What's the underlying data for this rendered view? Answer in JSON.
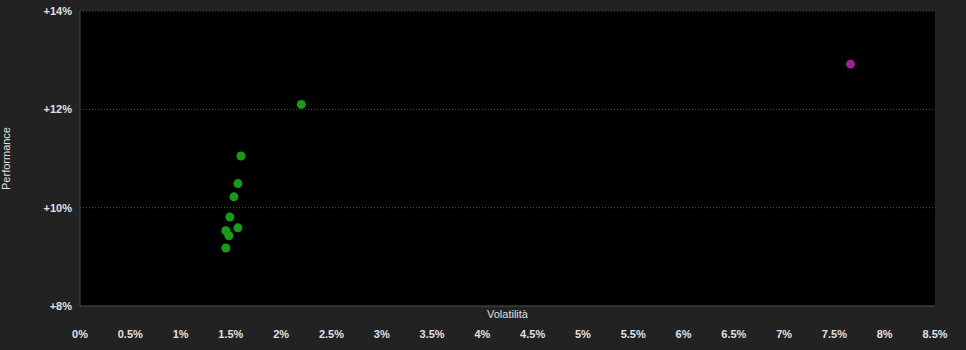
{
  "chart_data": {
    "type": "scatter",
    "x_label": "Volatilità",
    "y_label": "Performance",
    "xlim": [
      0,
      8.5
    ],
    "ylim": [
      8,
      14
    ],
    "xticks": [
      {
        "value": 0,
        "label": "0%"
      },
      {
        "value": 0.5,
        "label": "0.5%"
      },
      {
        "value": 1,
        "label": "1%"
      },
      {
        "value": 1.5,
        "label": "1.5%"
      },
      {
        "value": 2,
        "label": "2%"
      },
      {
        "value": 2.5,
        "label": "2.5%"
      },
      {
        "value": 3,
        "label": "3%"
      },
      {
        "value": 3.5,
        "label": "3.5%"
      },
      {
        "value": 4,
        "label": "4%"
      },
      {
        "value": 4.5,
        "label": "4.5%"
      },
      {
        "value": 5,
        "label": "5%"
      },
      {
        "value": 5.5,
        "label": "5.5%"
      },
      {
        "value": 6,
        "label": "6%"
      },
      {
        "value": 6.5,
        "label": "6.5%"
      },
      {
        "value": 7,
        "label": "7%"
      },
      {
        "value": 7.5,
        "label": "7.5%"
      },
      {
        "value": 8,
        "label": "8%"
      },
      {
        "value": 8.5,
        "label": "8.5%"
      }
    ],
    "yticks": [
      {
        "value": 8,
        "label": "+8%"
      },
      {
        "value": 10,
        "label": "+10%"
      },
      {
        "value": 12,
        "label": "+12%"
      },
      {
        "value": 14,
        "label": "+14%"
      }
    ],
    "grid": true,
    "marker": "circle",
    "series": [
      {
        "color": "#1a9a1a",
        "x": [
          2.2,
          1.6,
          1.57,
          1.53,
          1.49,
          1.45,
          1.57,
          1.48,
          1.45
        ],
        "values": [
          12.1,
          11.05,
          10.49,
          10.22,
          9.81,
          9.53,
          9.59,
          9.43,
          9.18
        ]
      },
      {
        "color": "#a0208f",
        "x": [
          7.66
        ],
        "values": [
          12.92
        ]
      }
    ]
  }
}
